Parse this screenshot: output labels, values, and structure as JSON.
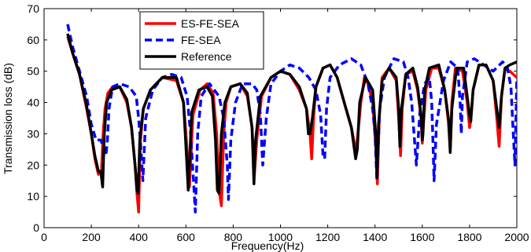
{
  "chart_data": {
    "type": "line",
    "title": "",
    "xlabel": "Frequency(Hz)",
    "ylabel": "Transmission loss (dB)",
    "xlim": [
      0,
      2000
    ],
    "ylim": [
      0,
      70
    ],
    "xticks": [
      0,
      200,
      400,
      600,
      800,
      1000,
      1200,
      1400,
      1600,
      1800,
      2000
    ],
    "yticks": [
      0,
      10,
      20,
      30,
      40,
      50,
      60,
      70
    ],
    "grid": false,
    "legend_position": "top-center",
    "series": [
      {
        "name": "ES-FE-SEA",
        "color": "#ff0000",
        "style": "solid",
        "x": [
          100,
          120,
          150,
          180,
          200,
          215,
          230,
          243,
          250,
          258,
          270,
          290,
          320,
          350,
          370,
          385,
          393,
          400,
          408,
          420,
          450,
          500,
          560,
          590,
          605,
          615,
          630,
          660,
          690,
          715,
          730,
          740,
          750,
          760,
          770,
          790,
          830,
          860,
          880,
          890,
          900,
          920,
          960,
          1000,
          1040,
          1080,
          1110,
          1125,
          1132,
          1140,
          1150,
          1180,
          1210,
          1240,
          1270,
          1300,
          1320,
          1340,
          1355,
          1370,
          1390,
          1405,
          1410,
          1418,
          1430,
          1460,
          1490,
          1500,
          1508,
          1515,
          1530,
          1560,
          1580,
          1595,
          1600,
          1605,
          1615,
          1640,
          1670,
          1695,
          1710,
          1718,
          1725,
          1740,
          1770,
          1790,
          1800,
          1805,
          1815,
          1840,
          1870,
          1900,
          1915,
          1925,
          1935,
          1950,
          1970,
          2000
        ],
        "y": [
          61,
          56,
          49,
          38,
          30,
          22,
          17,
          18,
          30,
          38,
          43,
          45,
          45,
          40,
          32,
          20,
          11,
          5,
          28,
          38,
          44,
          48,
          47,
          40,
          25,
          13,
          36,
          44,
          46,
          43,
          30,
          12,
          7,
          30,
          40,
          45,
          46,
          42,
          32,
          17,
          28,
          42,
          48,
          50,
          49,
          44,
          38,
          30,
          22,
          35,
          45,
          51,
          52,
          48,
          40,
          32,
          24,
          40,
          48,
          46,
          40,
          24,
          14,
          35,
          48,
          51,
          47,
          35,
          23,
          38,
          49,
          50,
          44,
          35,
          27,
          33,
          44,
          51,
          51,
          44,
          34,
          25,
          40,
          51,
          50,
          40,
          32,
          34,
          44,
          52,
          52,
          47,
          35,
          26,
          42,
          51,
          50,
          48
        ]
      },
      {
        "name": "FE-SEA",
        "color": "#0000ff",
        "style": "dashed",
        "x": [
          100,
          120,
          150,
          180,
          200,
          220,
          240,
          255,
          262,
          268,
          275,
          290,
          320,
          360,
          390,
          400,
          410,
          418,
          430,
          460,
          500,
          540,
          580,
          605,
          620,
          633,
          640,
          650,
          665,
          700,
          740,
          760,
          775,
          780,
          790,
          810,
          840,
          880,
          900,
          915,
          925,
          940,
          960,
          1000,
          1040,
          1080,
          1120,
          1150,
          1170,
          1180,
          1187,
          1195,
          1210,
          1250,
          1300,
          1340,
          1370,
          1390,
          1400,
          1408,
          1420,
          1440,
          1480,
          1520,
          1540,
          1555,
          1565,
          1575,
          1590,
          1610,
          1630,
          1640,
          1645,
          1650,
          1660,
          1690,
          1720,
          1750,
          1760,
          1765,
          1770,
          1790,
          1820,
          1860,
          1900,
          1940,
          1960,
          1975,
          1985,
          1992,
          2000
        ],
        "y": [
          65,
          58,
          50,
          42,
          33,
          28,
          28,
          25,
          23,
          28,
          38,
          45,
          46,
          45,
          42,
          35,
          25,
          15,
          35,
          44,
          48,
          49,
          48,
          42,
          30,
          14,
          5,
          30,
          42,
          46,
          42,
          35,
          20,
          9,
          28,
          40,
          46,
          46,
          44,
          36,
          20,
          35,
          46,
          50,
          52,
          51,
          48,
          44,
          36,
          23,
          22,
          38,
          48,
          52,
          54,
          52,
          46,
          38,
          30,
          15,
          38,
          48,
          54,
          53,
          48,
          40,
          30,
          20,
          37,
          46,
          48,
          40,
          28,
          15,
          33,
          47,
          53,
          51,
          40,
          30,
          42,
          53,
          54,
          52,
          50,
          53,
          51,
          45,
          30,
          20,
          48
        ]
      },
      {
        "name": "Reference",
        "color": "#000000",
        "style": "solid",
        "x": [
          100,
          120,
          150,
          180,
          200,
          215,
          230,
          240,
          248,
          255,
          265,
          285,
          320,
          350,
          370,
          385,
          393,
          398,
          405,
          420,
          450,
          500,
          560,
          590,
          603,
          610,
          625,
          655,
          690,
          712,
          725,
          733,
          740,
          750,
          765,
          790,
          830,
          860,
          880,
          888,
          895,
          915,
          960,
          1000,
          1040,
          1080,
          1110,
          1118,
          1125,
          1135,
          1150,
          1180,
          1210,
          1240,
          1270,
          1300,
          1318,
          1325,
          1335,
          1360,
          1390,
          1403,
          1408,
          1415,
          1430,
          1460,
          1490,
          1500,
          1505,
          1512,
          1530,
          1560,
          1580,
          1595,
          1600,
          1603,
          1610,
          1630,
          1670,
          1695,
          1712,
          1718,
          1725,
          1745,
          1775,
          1790,
          1800,
          1805,
          1815,
          1840,
          1870,
          1900,
          1915,
          1925,
          1935,
          1950,
          1970,
          2000
        ],
        "y": [
          62,
          56,
          49,
          39,
          30,
          23,
          18,
          18,
          13,
          30,
          40,
          44,
          45,
          41,
          32,
          20,
          12,
          11,
          28,
          38,
          44,
          48,
          48,
          40,
          22,
          12,
          37,
          44,
          45,
          42,
          28,
          12,
          11,
          30,
          40,
          45,
          46,
          43,
          32,
          14,
          28,
          42,
          48,
          50,
          49,
          45,
          38,
          30,
          30,
          35,
          45,
          51,
          52,
          48,
          40,
          32,
          22,
          25,
          40,
          48,
          44,
          30,
          16,
          33,
          47,
          51,
          48,
          38,
          26,
          38,
          49,
          51,
          45,
          36,
          28,
          30,
          44,
          51,
          52,
          44,
          34,
          24,
          38,
          51,
          51,
          42,
          36,
          34,
          44,
          52,
          52,
          47,
          38,
          32,
          42,
          51,
          52,
          53
        ]
      }
    ]
  }
}
